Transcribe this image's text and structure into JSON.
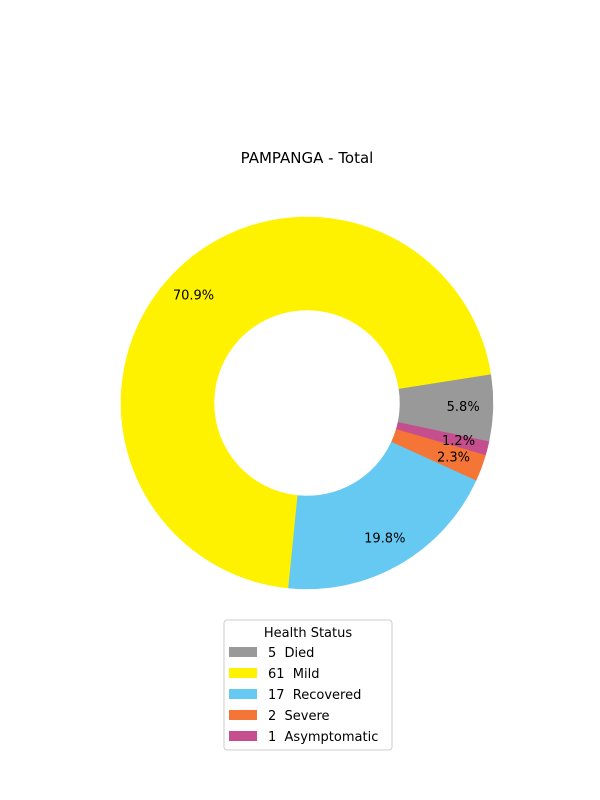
{
  "chart_data": {
    "type": "pie",
    "title": "PAMPANGA - Total",
    "donut": true,
    "start_angle_deg": -12,
    "direction": "counterclockwise",
    "legend": {
      "title": "Health Status",
      "placement": "bottom-center"
    },
    "slices": [
      {
        "label": "Died",
        "value": 5,
        "percent_label": "5.8%",
        "color": "#999999"
      },
      {
        "label": "Mild",
        "value": 61,
        "percent_label": "70.9%",
        "color": "#fff200"
      },
      {
        "label": "Recovered",
        "value": 17,
        "percent_label": "19.8%",
        "color": "#66c9f2"
      },
      {
        "label": "Severe",
        "value": 2,
        "percent_label": "2.3%",
        "color": "#f47535"
      },
      {
        "label": "Asymptomatic",
        "value": 1,
        "percent_label": "1.2%",
        "color": "#c44e8e"
      }
    ]
  }
}
